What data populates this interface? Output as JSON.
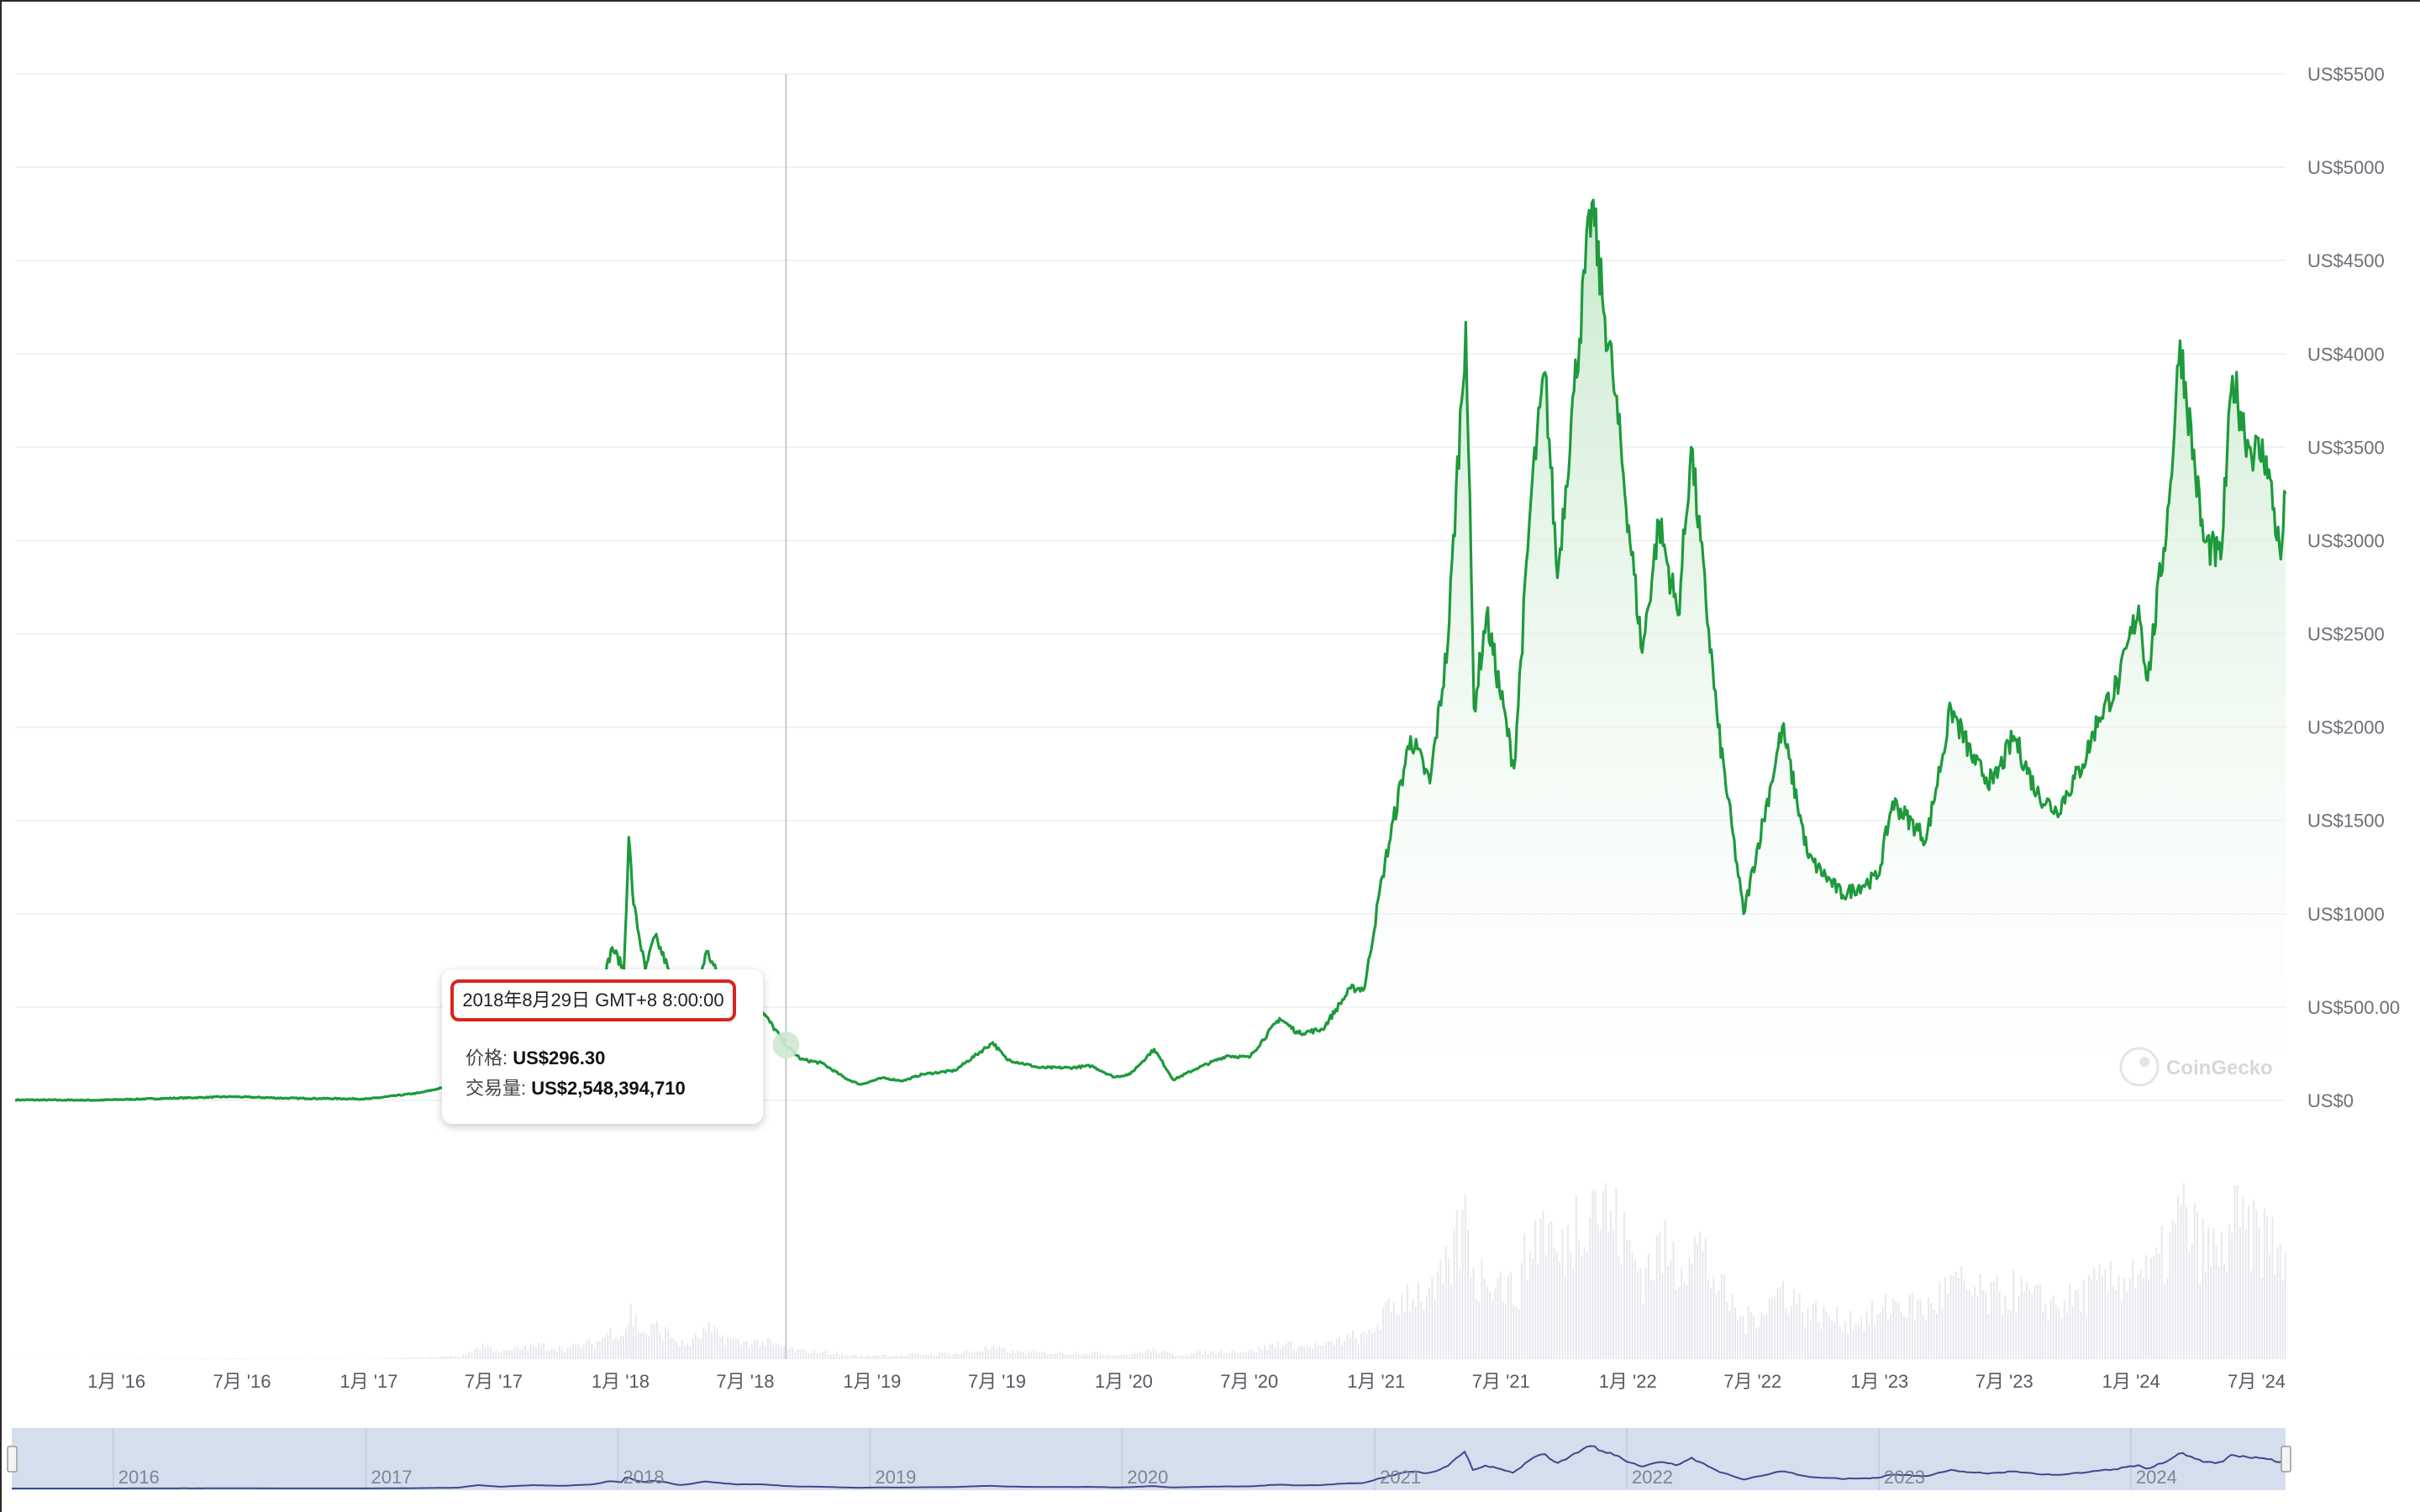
{
  "colors": {
    "line": "#1e9a3c",
    "area_top": "#c8e9cd",
    "grid": "#ededed",
    "volume": "#e7e9ee",
    "navigator_bg": "#d5deec",
    "navigator_line": "#3b4a8c",
    "tooltip_border": "#d8261c"
  },
  "tooltip": {
    "date": "2018年8月29日 GMT+8 8:00:00",
    "price_label": "价格: ",
    "price_value": "US$296.30",
    "volume_label": "交易量: ",
    "volume_value": "US$2,548,394,710"
  },
  "watermark": "CoinGecko",
  "chart_data": {
    "type": "area",
    "y_ticks": [
      "US$0",
      "US$500.00",
      "US$1000",
      "US$1500",
      "US$2000",
      "US$2500",
      "US$3000",
      "US$3500",
      "US$4000",
      "US$4500",
      "US$5000",
      "US$5500"
    ],
    "y_tick_values": [
      0,
      500,
      1000,
      1500,
      2000,
      2500,
      3000,
      3500,
      4000,
      4500,
      5000,
      5500
    ],
    "ylim": [
      0,
      5500
    ],
    "x_ticks": [
      "1月 '16",
      "7月 '16",
      "1月 '17",
      "7月 '17",
      "1月 '18",
      "7月 '18",
      "1月 '19",
      "7月 '19",
      "1月 '20",
      "7月 '20",
      "1月 '21",
      "7月 '21",
      "1月 '22",
      "7月 '22",
      "1月 '23",
      "7月 '23",
      "1月 '24",
      "7月 '24"
    ],
    "x_tick_dates": [
      "2016-01-01",
      "2016-07-01",
      "2017-01-01",
      "2017-07-01",
      "2018-01-01",
      "2018-07-01",
      "2019-01-01",
      "2019-07-01",
      "2020-01-01",
      "2020-07-01",
      "2021-01-01",
      "2021-07-01",
      "2022-01-01",
      "2022-07-01",
      "2023-01-01",
      "2023-07-01",
      "2024-01-01",
      "2024-07-01"
    ],
    "xlim": [
      "2015-08-07",
      "2024-08-12"
    ],
    "navigator_ticks": [
      "2016",
      "2017",
      "2018",
      "2019",
      "2020",
      "2021",
      "2022",
      "2023",
      "2024"
    ],
    "grid": true,
    "crosshair_date": "2018-08-29",
    "series": [
      {
        "values": [
          [
            "2015-08-07",
            2.8
          ],
          [
            "2015-12-01",
            0.9
          ],
          [
            "2016-03-15",
            11
          ],
          [
            "2016-06-15",
            20
          ],
          [
            "2016-09-01",
            12
          ],
          [
            "2016-12-31",
            8
          ],
          [
            "2017-03-15",
            40
          ],
          [
            "2017-05-15",
            90
          ],
          [
            "2017-06-12",
            380
          ],
          [
            "2017-07-15",
            200
          ],
          [
            "2017-09-01",
            380
          ],
          [
            "2017-10-15",
            300
          ],
          [
            "2017-11-25",
            470
          ],
          [
            "2017-12-20",
            820
          ],
          [
            "2018-01-06",
            700
          ],
          [
            "2018-01-13",
            1410
          ],
          [
            "2018-01-20",
            1050
          ],
          [
            "2018-02-06",
            700
          ],
          [
            "2018-02-20",
            880
          ],
          [
            "2018-03-10",
            720
          ],
          [
            "2018-04-01",
            380
          ],
          [
            "2018-04-15",
            500
          ],
          [
            "2018-05-06",
            800
          ],
          [
            "2018-05-20",
            690
          ],
          [
            "2018-06-20",
            470
          ],
          [
            "2018-07-25",
            480
          ],
          [
            "2018-08-29",
            296.3
          ],
          [
            "2018-09-20",
            220
          ],
          [
            "2018-10-20",
            200
          ],
          [
            "2018-11-25",
            115
          ],
          [
            "2018-12-15",
            85
          ],
          [
            "2019-01-15",
            120
          ],
          [
            "2019-02-15",
            105
          ],
          [
            "2019-03-15",
            140
          ],
          [
            "2019-05-01",
            160
          ],
          [
            "2019-06-25",
            310
          ],
          [
            "2019-07-15",
            220
          ],
          [
            "2019-09-01",
            175
          ],
          [
            "2019-10-15",
            175
          ],
          [
            "2019-11-15",
            185
          ],
          [
            "2019-12-18",
            125
          ],
          [
            "2020-01-10",
            140
          ],
          [
            "2020-02-14",
            275
          ],
          [
            "2020-03-13",
            110
          ],
          [
            "2020-04-15",
            170
          ],
          [
            "2020-05-30",
            240
          ],
          [
            "2020-07-01",
            230
          ],
          [
            "2020-08-14",
            440
          ],
          [
            "2020-09-10",
            360
          ],
          [
            "2020-10-15",
            380
          ],
          [
            "2020-11-25",
            600
          ],
          [
            "2020-12-15",
            600
          ],
          [
            "2021-01-10",
            1200
          ],
          [
            "2021-02-20",
            1950
          ],
          [
            "2021-03-20",
            1700
          ],
          [
            "2021-04-15",
            2450
          ],
          [
            "2021-05-11",
            4170
          ],
          [
            "2021-05-23",
            2100
          ],
          [
            "2021-06-10",
            2600
          ],
          [
            "2021-07-20",
            1780
          ],
          [
            "2021-08-15",
            3300
          ],
          [
            "2021-09-03",
            3900
          ],
          [
            "2021-09-21",
            2800
          ],
          [
            "2021-10-15",
            3800
          ],
          [
            "2021-11-10",
            4810
          ],
          [
            "2021-11-25",
            4300
          ],
          [
            "2021-12-10",
            3900
          ],
          [
            "2022-01-22",
            2400
          ],
          [
            "2022-02-15",
            3100
          ],
          [
            "2022-03-15",
            2600
          ],
          [
            "2022-04-03",
            3500
          ],
          [
            "2022-05-12",
            2000
          ],
          [
            "2022-06-18",
            1000
          ],
          [
            "2022-07-28",
            1700
          ],
          [
            "2022-08-13",
            2000
          ],
          [
            "2022-09-20",
            1300
          ],
          [
            "2022-11-09",
            1100
          ],
          [
            "2022-12-30",
            1200
          ],
          [
            "2023-01-20",
            1600
          ],
          [
            "2023-03-10",
            1400
          ],
          [
            "2023-04-15",
            2100
          ],
          [
            "2023-05-20",
            1800
          ],
          [
            "2023-06-15",
            1700
          ],
          [
            "2023-07-15",
            1950
          ],
          [
            "2023-08-17",
            1650
          ],
          [
            "2023-09-15",
            1550
          ],
          [
            "2023-10-23",
            1800
          ],
          [
            "2023-11-15",
            2050
          ],
          [
            "2023-12-15",
            2250
          ],
          [
            "2024-01-12",
            2650
          ],
          [
            "2024-01-25",
            2250
          ],
          [
            "2024-02-25",
            3200
          ],
          [
            "2024-03-12",
            4070
          ],
          [
            "2024-04-15",
            3000
          ],
          [
            "2024-05-10",
            2900
          ],
          [
            "2024-05-27",
            3880
          ],
          [
            "2024-06-20",
            3500
          ],
          [
            "2024-07-15",
            3450
          ],
          [
            "2024-08-05",
            2900
          ],
          [
            "2024-08-12",
            3250
          ]
        ]
      }
    ]
  }
}
